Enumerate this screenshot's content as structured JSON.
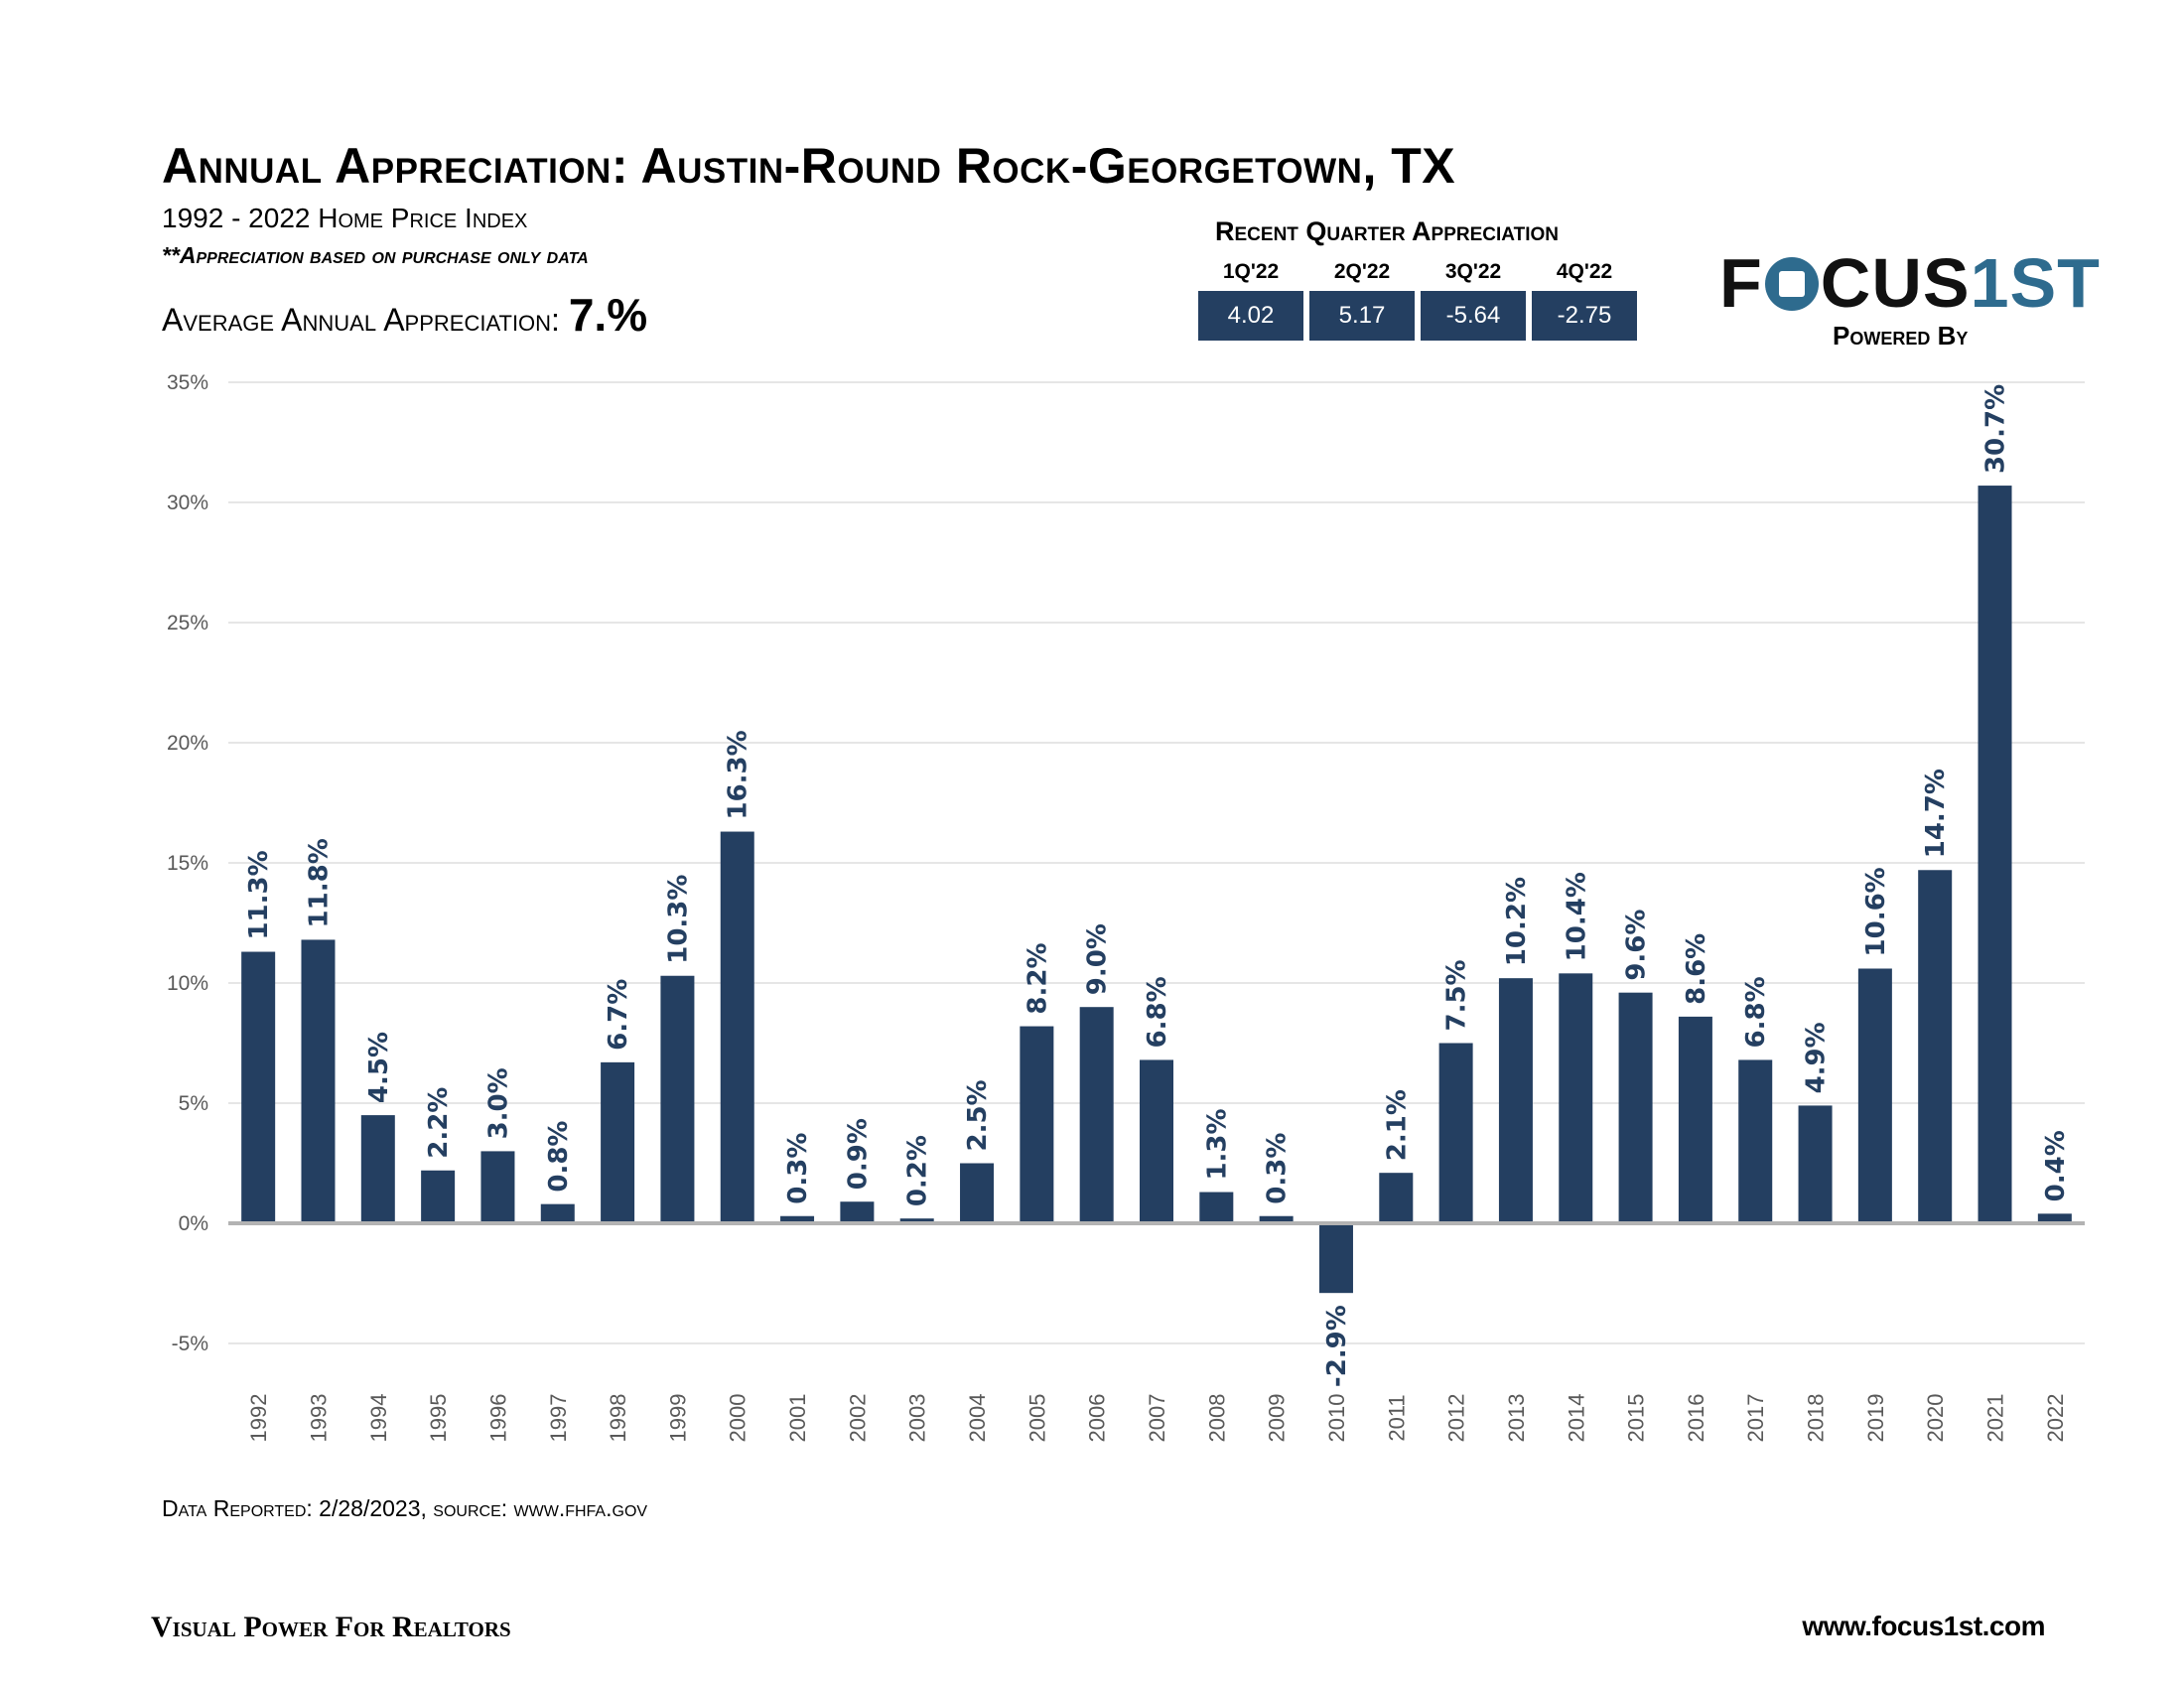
{
  "header": {
    "title": "Annual Appreciation: Austin-Round Rock-Georgetown, TX",
    "subtitle": "1992 - 2022 Home Price Index",
    "note": "**Appreciation based on purchase only data",
    "avg_label": "Average Annual Appreciation:",
    "avg_value": "7.%"
  },
  "recent_quarters": {
    "title": "Recent Quarter Appreciation",
    "items": [
      {
        "label": "1Q'22",
        "value": "4.02"
      },
      {
        "label": "2Q'22",
        "value": "5.17"
      },
      {
        "label": "3Q'22",
        "value": "-5.64"
      },
      {
        "label": "4Q'22",
        "value": "-2.75"
      }
    ]
  },
  "logo": {
    "part1": "F",
    "part2": "CUS",
    "part3": "1ST",
    "powered": "Powered By"
  },
  "footer": {
    "data_reported": "Data Reported: 2/28/2023, source: www.fhfa.gov",
    "left": "Visual Power For Realtors",
    "right": "www.focus1st.com"
  },
  "colors": {
    "bar": "#243f61",
    "label": "#243f61",
    "grid": "#e6e6e6",
    "zero_line": "#b3b3b3"
  },
  "chart_data": {
    "type": "bar",
    "categories": [
      "1992",
      "1993",
      "1994",
      "1995",
      "1996",
      "1997",
      "1998",
      "1999",
      "2000",
      "2001",
      "2002",
      "2003",
      "2004",
      "2005",
      "2006",
      "2007",
      "2008",
      "2009",
      "2010",
      "2011",
      "2012",
      "2013",
      "2014",
      "2015",
      "2016",
      "2017",
      "2018",
      "2019",
      "2020",
      "2021",
      "2022"
    ],
    "values": [
      11.3,
      11.8,
      4.5,
      2.2,
      3.0,
      0.8,
      6.7,
      10.3,
      16.3,
      0.3,
      0.9,
      0.2,
      2.5,
      8.2,
      9.0,
      6.8,
      1.3,
      0.3,
      -2.9,
      2.1,
      7.5,
      10.2,
      10.4,
      9.6,
      8.6,
      6.8,
      4.9,
      10.6,
      14.7,
      30.7,
      0.4
    ],
    "data_labels": [
      "11.3%",
      "11.8%",
      "4.5%",
      "2.2%",
      "3.0%",
      "0.8%",
      "6.7%",
      "10.3%",
      "16.3%",
      "0.3%",
      "0.9%",
      "0.2%",
      "2.5%",
      "8.2%",
      "9.0%",
      "6.8%",
      "1.3%",
      "0.3%",
      "-2.9%",
      "2.1%",
      "7.5%",
      "10.2%",
      "10.4%",
      "9.6%",
      "8.6%",
      "6.8%",
      "4.9%",
      "10.6%",
      "14.7%",
      "30.7%",
      "0.4%"
    ],
    "ylim": [
      -5,
      35
    ],
    "yticks": [
      -5,
      0,
      5,
      10,
      15,
      20,
      25,
      30,
      35
    ],
    "ytick_labels": [
      "-5%",
      "0%",
      "5%",
      "10%",
      "15%",
      "20%",
      "25%",
      "30%",
      "35%"
    ],
    "grid": true,
    "title": "",
    "xlabel": "",
    "ylabel": ""
  }
}
